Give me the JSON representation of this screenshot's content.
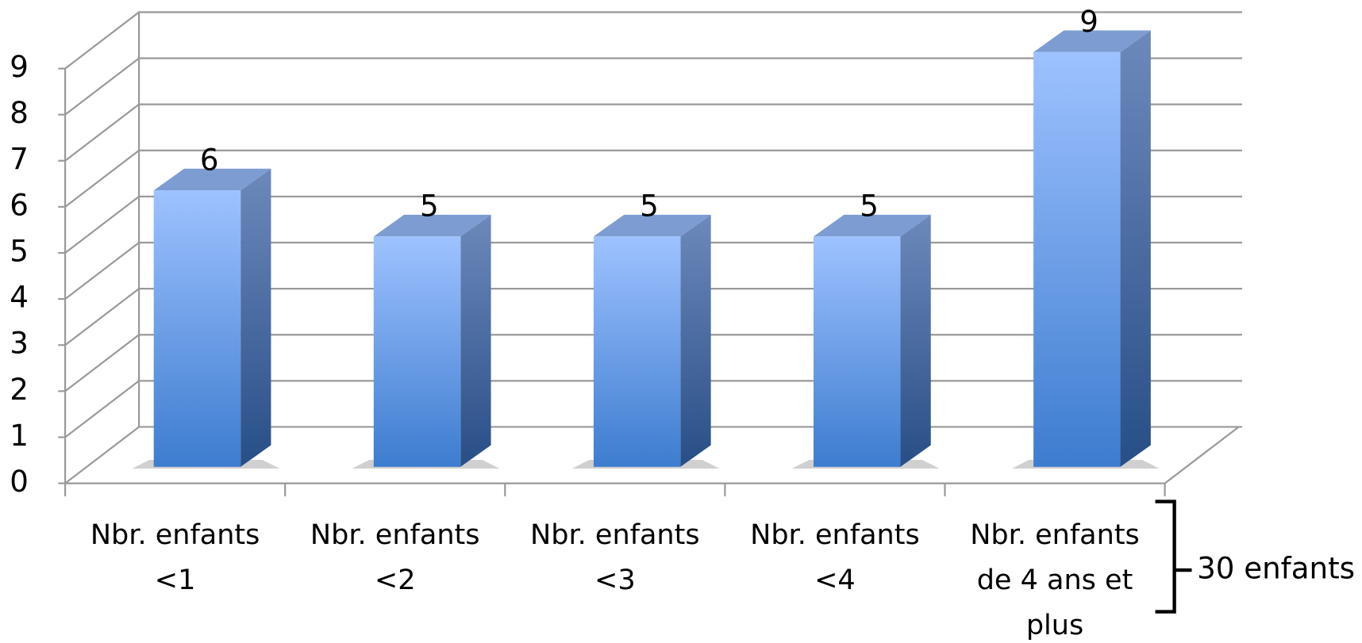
{
  "chart_data": {
    "type": "bar",
    "categories": [
      "Nbr. enfants <1",
      "Nbr. enfants <2",
      "Nbr. enfants <3",
      "Nbr. enfants <4",
      "Nbr. enfants de 4 ans et plus"
    ],
    "values": [
      6,
      5,
      5,
      5,
      9
    ],
    "ylim": [
      0,
      9
    ],
    "yticks": [
      0,
      1,
      2,
      3,
      4,
      5,
      6,
      7,
      8,
      9
    ],
    "grid": true,
    "color": "#4f86d6",
    "annotation": "30 enfants"
  }
}
